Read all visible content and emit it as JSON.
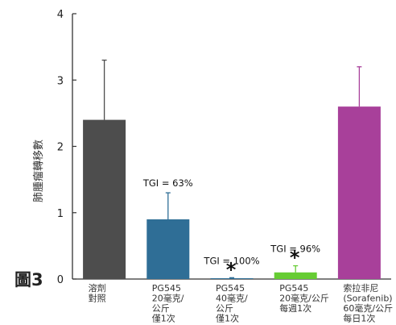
{
  "figure_label": "圖3",
  "chart_data": {
    "type": "bar",
    "ylabel": "肺腫瘤轉移數",
    "ylim": [
      0,
      4
    ],
    "yticks": [
      0,
      1,
      2,
      3,
      4
    ],
    "grid": false,
    "categories": [
      [
        "溶劑",
        "對照"
      ],
      [
        "PG545",
        "20毫克/",
        "公斤",
        "僅1次"
      ],
      [
        "PG545",
        "40毫克/",
        "公斤",
        "僅1次"
      ],
      [
        "PG545",
        "20毫克/公斤",
        "每週1次"
      ],
      [
        "索拉非尼",
        "(Sorafenib)",
        "60毫克/公斤",
        "每日1次"
      ]
    ],
    "values": [
      2.4,
      0.9,
      0.01,
      0.1,
      2.6
    ],
    "error_upper": [
      3.3,
      1.3,
      0.02,
      0.2,
      3.2
    ],
    "colors": [
      "#4d4d4d",
      "#2f6e96",
      "#2f6e96",
      "#66cc33",
      "#a8409a"
    ],
    "annotations": [
      {
        "bar": 1,
        "text": "TGI = 63%",
        "star": false
      },
      {
        "bar": 2,
        "text": "TGI = 100%",
        "star": true
      },
      {
        "bar": 3,
        "text": "TGI = 96%",
        "star": true
      }
    ]
  }
}
